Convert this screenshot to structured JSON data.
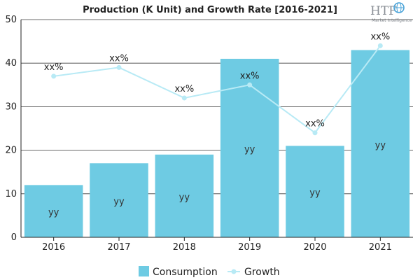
{
  "chart_data": {
    "type": "bar",
    "title": "Production (K Unit) and Growth Rate [2016-2021]",
    "categories": [
      "2016",
      "2017",
      "2018",
      "2019",
      "2020",
      "2021"
    ],
    "ylim": [
      0,
      50
    ],
    "yticks": [
      0,
      10,
      20,
      30,
      40,
      50
    ],
    "grid": true,
    "legend_position": "bottom",
    "series": [
      {
        "name": "Consumption",
        "type": "bar",
        "values": [
          12,
          17,
          19,
          41,
          21,
          43
        ],
        "labels": [
          "yy",
          "yy",
          "yy",
          "yy",
          "yy",
          "yy"
        ],
        "color": "#6ECBE3"
      },
      {
        "name": "Growth",
        "type": "line",
        "values": [
          37,
          39,
          32,
          35,
          24,
          44
        ],
        "labels": [
          "xx%",
          "xx%",
          "xx%",
          "xx%",
          "xx%",
          "xx%"
        ],
        "color": "#B8EAF5"
      }
    ]
  },
  "logo": {
    "text": "HTF",
    "subtitle": "Market Intelligence",
    "icon": "globe-icon"
  }
}
